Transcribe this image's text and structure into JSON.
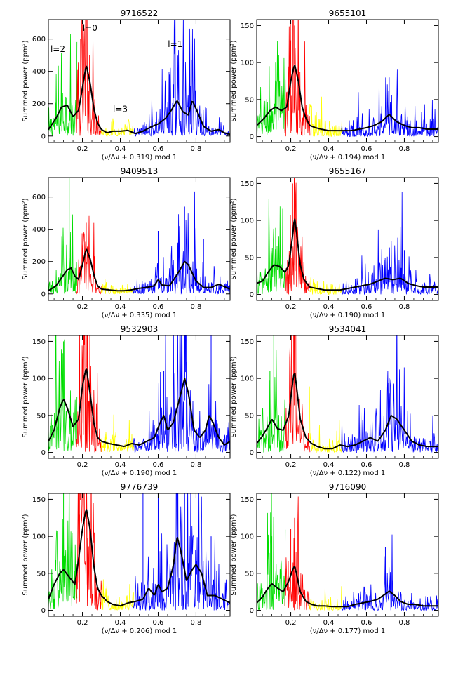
{
  "chart_data": [
    {
      "type": "line",
      "title": "9716522",
      "xlabel": "(ν/Δν + 0.319) mod 1",
      "ylabel": "Summed power (ppm²)",
      "xlim": [
        0.02,
        0.98
      ],
      "ylim": [
        -40,
        720
      ],
      "xticks": [
        "0.2",
        "0.4",
        "0.6",
        "0.8"
      ],
      "yticks": [
        "0",
        "200",
        "400",
        "600"
      ],
      "annotations": [
        {
          "text": "l=2",
          "x": 0.07,
          "y": 520
        },
        {
          "text": "l=0",
          "x": 0.24,
          "y": 650
        },
        {
          "text": "l=3",
          "x": 0.4,
          "y": 150
        },
        {
          "text": "l=1",
          "x": 0.69,
          "y": 550
        }
      ],
      "bands": [
        {
          "mode": "l=2",
          "color": "#00dd00",
          "range": [
            0.02,
            0.17
          ]
        },
        {
          "mode": "l=0",
          "color": "#ff0000",
          "range": [
            0.17,
            0.3
          ]
        },
        {
          "mode": "l=3",
          "color": "#ffff00",
          "range": [
            0.3,
            0.47
          ]
        },
        {
          "mode": "l=1",
          "color": "#0000ff",
          "range": [
            0.47,
            0.98
          ]
        }
      ],
      "envelope": {
        "color": "#000000",
        "x": [
          0.02,
          0.06,
          0.09,
          0.12,
          0.15,
          0.18,
          0.2,
          0.22,
          0.24,
          0.26,
          0.28,
          0.3,
          0.33,
          0.36,
          0.4,
          0.44,
          0.48,
          0.52,
          0.56,
          0.6,
          0.64,
          0.67,
          0.7,
          0.73,
          0.76,
          0.78,
          0.8,
          0.84,
          0.88,
          0.92,
          0.95,
          0.98
        ],
        "y": [
          40,
          110,
          180,
          190,
          120,
          160,
          300,
          440,
          330,
          170,
          80,
          40,
          20,
          30,
          30,
          35,
          15,
          30,
          55,
          75,
          110,
          160,
          220,
          150,
          130,
          220,
          170,
          60,
          30,
          40,
          20,
          10
        ]
      },
      "spikes": [
        {
          "x": 0.22,
          "y": 720
        },
        {
          "x": 0.19,
          "y": 600
        },
        {
          "x": 0.7,
          "y": 510
        },
        {
          "x": 0.78,
          "y": 470
        },
        {
          "x": 0.22,
          "y": 700
        },
        {
          "x": 0.66,
          "y": 380
        }
      ]
    },
    {
      "type": "line",
      "title": "9655101",
      "xlabel": "(ν/Δν + 0.194) mod 1",
      "ylabel": "Summed power (ppm²)",
      "xlim": [
        0.02,
        0.98
      ],
      "ylim": [
        -8,
        158
      ],
      "xticks": [
        "0.2",
        "0.4",
        "0.6",
        "0.8"
      ],
      "yticks": [
        "0",
        "50",
        "100",
        "150"
      ],
      "annotations": [],
      "bands": [
        {
          "mode": "l=2",
          "color": "#00dd00",
          "range": [
            0.02,
            0.17
          ]
        },
        {
          "mode": "l=0",
          "color": "#ff0000",
          "range": [
            0.17,
            0.3
          ]
        },
        {
          "mode": "l=3",
          "color": "#ffff00",
          "range": [
            0.3,
            0.47
          ]
        },
        {
          "mode": "l=1",
          "color": "#0000ff",
          "range": [
            0.47,
            0.98
          ]
        }
      ],
      "envelope": {
        "color": "#000000",
        "x": [
          0.02,
          0.06,
          0.09,
          0.12,
          0.15,
          0.18,
          0.2,
          0.22,
          0.24,
          0.26,
          0.28,
          0.3,
          0.33,
          0.36,
          0.4,
          0.44,
          0.48,
          0.52,
          0.56,
          0.6,
          0.64,
          0.68,
          0.72,
          0.76,
          0.8,
          0.84,
          0.88,
          0.92,
          0.96,
          0.98
        ],
        "y": [
          15,
          25,
          35,
          40,
          35,
          40,
          75,
          98,
          75,
          40,
          25,
          15,
          12,
          10,
          8,
          8,
          8,
          8,
          10,
          12,
          15,
          20,
          30,
          20,
          15,
          12,
          12,
          10,
          10,
          10
        ]
      },
      "spikes": [
        {
          "x": 0.22,
          "y": 150
        },
        {
          "x": 0.2,
          "y": 130
        },
        {
          "x": 0.72,
          "y": 80
        },
        {
          "x": 0.12,
          "y": 100
        }
      ]
    },
    {
      "type": "line",
      "title": "9409513",
      "xlabel": "(ν/Δν + 0.335) mod 1",
      "ylabel": "Summed power (ppm²)",
      "xlim": [
        0.02,
        0.98
      ],
      "ylim": [
        -40,
        720
      ],
      "xticks": [
        "0.2",
        "0.4",
        "0.6",
        "0.8"
      ],
      "yticks": [
        "0",
        "200",
        "400",
        "600"
      ],
      "annotations": [],
      "bands": [
        {
          "mode": "l=2",
          "color": "#00dd00",
          "range": [
            0.02,
            0.17
          ]
        },
        {
          "mode": "l=0",
          "color": "#ff0000",
          "range": [
            0.17,
            0.3
          ]
        },
        {
          "mode": "l=3",
          "color": "#ffff00",
          "range": [
            0.3,
            0.47
          ]
        },
        {
          "mode": "l=1",
          "color": "#0000ff",
          "range": [
            0.47,
            0.98
          ]
        }
      ],
      "envelope": {
        "color": "#000000",
        "x": [
          0.02,
          0.06,
          0.09,
          0.12,
          0.14,
          0.16,
          0.18,
          0.2,
          0.22,
          0.24,
          0.26,
          0.28,
          0.3,
          0.34,
          0.38,
          0.42,
          0.46,
          0.5,
          0.54,
          0.58,
          0.6,
          0.62,
          0.66,
          0.7,
          0.74,
          0.76,
          0.8,
          0.84,
          0.88,
          0.92,
          0.96,
          0.98
        ],
        "y": [
          20,
          50,
          100,
          150,
          160,
          110,
          90,
          180,
          280,
          220,
          120,
          50,
          30,
          25,
          20,
          20,
          25,
          35,
          40,
          50,
          90,
          55,
          50,
          120,
          200,
          180,
          80,
          40,
          40,
          60,
          40,
          30
        ]
      },
      "spikes": [
        {
          "x": 0.13,
          "y": 720
        },
        {
          "x": 0.22,
          "y": 440
        },
        {
          "x": 0.74,
          "y": 540
        },
        {
          "x": 0.6,
          "y": 390
        },
        {
          "x": 0.84,
          "y": 340
        }
      ]
    },
    {
      "type": "line",
      "title": "9655167",
      "xlabel": "(ν/Δν + 0.190) mod 1",
      "ylabel": "Summed power (ppm²)",
      "xlim": [
        0.02,
        0.98
      ],
      "ylim": [
        -8,
        158
      ],
      "xticks": [
        "0.2",
        "0.4",
        "0.6",
        "0.8"
      ],
      "yticks": [
        "0",
        "50",
        "100",
        "150"
      ],
      "annotations": [],
      "bands": [
        {
          "mode": "l=2",
          "color": "#00dd00",
          "range": [
            0.02,
            0.17
          ]
        },
        {
          "mode": "l=0",
          "color": "#ff0000",
          "range": [
            0.17,
            0.3
          ]
        },
        {
          "mode": "l=3",
          "color": "#ffff00",
          "range": [
            0.3,
            0.47
          ]
        },
        {
          "mode": "l=1",
          "color": "#0000ff",
          "range": [
            0.47,
            0.98
          ]
        }
      ],
      "envelope": {
        "color": "#000000",
        "x": [
          0.02,
          0.05,
          0.08,
          0.11,
          0.14,
          0.17,
          0.19,
          0.21,
          0.22,
          0.23,
          0.25,
          0.27,
          0.3,
          0.34,
          0.38,
          0.42,
          0.46,
          0.5,
          0.54,
          0.58,
          0.62,
          0.66,
          0.7,
          0.74,
          0.78,
          0.82,
          0.86,
          0.9,
          0.94,
          0.98
        ],
        "y": [
          15,
          18,
          30,
          40,
          38,
          30,
          40,
          80,
          105,
          85,
          40,
          20,
          10,
          8,
          6,
          6,
          6,
          8,
          10,
          12,
          14,
          18,
          22,
          20,
          22,
          15,
          12,
          10,
          10,
          10
        ]
      },
      "spikes": [
        {
          "x": 0.22,
          "y": 160
        },
        {
          "x": 0.21,
          "y": 150
        },
        {
          "x": 0.12,
          "y": 90
        },
        {
          "x": 0.8,
          "y": 60
        }
      ]
    },
    {
      "type": "line",
      "title": "9532903",
      "xlabel": "(ν/Δν + 0.190) mod 1",
      "ylabel": "Summed power (ppm²)",
      "xlim": [
        0.02,
        0.98
      ],
      "ylim": [
        -8,
        158
      ],
      "xticks": [
        "0.2",
        "0.4",
        "0.6",
        "0.8"
      ],
      "yticks": [
        "0",
        "50",
        "100",
        "150"
      ],
      "annotations": [],
      "bands": [
        {
          "mode": "l=2",
          "color": "#00dd00",
          "range": [
            0.02,
            0.17
          ]
        },
        {
          "mode": "l=0",
          "color": "#ff0000",
          "range": [
            0.17,
            0.3
          ]
        },
        {
          "mode": "l=3",
          "color": "#ffff00",
          "range": [
            0.3,
            0.47
          ]
        },
        {
          "mode": "l=1",
          "color": "#0000ff",
          "range": [
            0.47,
            0.98
          ]
        }
      ],
      "envelope": {
        "color": "#000000",
        "x": [
          0.02,
          0.05,
          0.08,
          0.1,
          0.12,
          0.15,
          0.18,
          0.2,
          0.22,
          0.24,
          0.26,
          0.28,
          0.3,
          0.34,
          0.38,
          0.42,
          0.46,
          0.5,
          0.54,
          0.58,
          0.61,
          0.63,
          0.65,
          0.68,
          0.71,
          0.74,
          0.76,
          0.79,
          0.82,
          0.85,
          0.87,
          0.89,
          0.92,
          0.95,
          0.98
        ],
        "y": [
          15,
          30,
          60,
          72,
          60,
          35,
          45,
          90,
          115,
          80,
          40,
          20,
          15,
          12,
          10,
          8,
          12,
          10,
          15,
          20,
          40,
          50,
          30,
          40,
          70,
          100,
          80,
          30,
          20,
          30,
          50,
          40,
          20,
          10,
          15
        ]
      },
      "spikes": [
        {
          "x": 0.1,
          "y": 150
        },
        {
          "x": 0.22,
          "y": 160
        },
        {
          "x": 0.74,
          "y": 160
        },
        {
          "x": 0.88,
          "y": 160
        },
        {
          "x": 0.63,
          "y": 110
        }
      ]
    },
    {
      "type": "line",
      "title": "9534041",
      "xlabel": "(ν/Δν + 0.122) mod 1",
      "ylabel": "Summed power (ppm²)",
      "xlim": [
        0.02,
        0.98
      ],
      "ylim": [
        -8,
        158
      ],
      "xticks": [
        "0.2",
        "0.4",
        "0.6",
        "0.8"
      ],
      "yticks": [
        "0",
        "50",
        "100",
        "150"
      ],
      "annotations": [],
      "bands": [
        {
          "mode": "l=2",
          "color": "#00dd00",
          "range": [
            0.02,
            0.17
          ]
        },
        {
          "mode": "l=0",
          "color": "#ff0000",
          "range": [
            0.17,
            0.3
          ]
        },
        {
          "mode": "l=3",
          "color": "#ffff00",
          "range": [
            0.3,
            0.47
          ]
        },
        {
          "mode": "l=1",
          "color": "#0000ff",
          "range": [
            0.47,
            0.98
          ]
        }
      ],
      "envelope": {
        "color": "#000000",
        "x": [
          0.02,
          0.05,
          0.08,
          0.1,
          0.13,
          0.16,
          0.19,
          0.21,
          0.22,
          0.23,
          0.25,
          0.28,
          0.31,
          0.34,
          0.38,
          0.42,
          0.46,
          0.5,
          0.54,
          0.58,
          0.62,
          0.66,
          0.7,
          0.73,
          0.76,
          0.8,
          0.84,
          0.88,
          0.92,
          0.96,
          0.98
        ],
        "y": [
          12,
          22,
          35,
          45,
          32,
          30,
          50,
          95,
          110,
          90,
          45,
          20,
          12,
          8,
          5,
          5,
          10,
          8,
          10,
          15,
          20,
          15,
          30,
          50,
          45,
          30,
          15,
          10,
          8,
          8,
          8
        ]
      },
      "spikes": [
        {
          "x": 0.22,
          "y": 160
        },
        {
          "x": 0.11,
          "y": 160
        },
        {
          "x": 0.72,
          "y": 100
        },
        {
          "x": 0.09,
          "y": 110
        }
      ]
    },
    {
      "type": "line",
      "title": "9776739",
      "xlabel": "(ν/Δν + 0.206) mod 1",
      "ylabel": "Summed power (ppm²)",
      "xlim": [
        0.02,
        0.98
      ],
      "ylim": [
        -8,
        158
      ],
      "xticks": [
        "0.2",
        "0.4",
        "0.6",
        "0.8"
      ],
      "yticks": [
        "0",
        "50",
        "100",
        "150"
      ],
      "annotations": [],
      "bands": [
        {
          "mode": "l=2",
          "color": "#00dd00",
          "range": [
            0.02,
            0.17
          ]
        },
        {
          "mode": "l=0",
          "color": "#ff0000",
          "range": [
            0.17,
            0.3
          ]
        },
        {
          "mode": "l=3",
          "color": "#ffff00",
          "range": [
            0.3,
            0.47
          ]
        },
        {
          "mode": "l=1",
          "color": "#0000ff",
          "range": [
            0.47,
            0.98
          ]
        }
      ],
      "envelope": {
        "color": "#000000",
        "x": [
          0.02,
          0.05,
          0.08,
          0.1,
          0.13,
          0.16,
          0.18,
          0.2,
          0.22,
          0.24,
          0.26,
          0.28,
          0.3,
          0.33,
          0.36,
          0.4,
          0.44,
          0.48,
          0.52,
          0.55,
          0.58,
          0.6,
          0.62,
          0.65,
          0.68,
          0.7,
          0.72,
          0.75,
          0.78,
          0.8,
          0.83,
          0.86,
          0.9,
          0.94,
          0.98
        ],
        "y": [
          15,
          35,
          50,
          55,
          45,
          35,
          70,
          110,
          138,
          110,
          60,
          30,
          20,
          12,
          8,
          6,
          10,
          12,
          15,
          30,
          20,
          35,
          25,
          30,
          60,
          100,
          80,
          40,
          55,
          62,
          50,
          20,
          20,
          15,
          10
        ]
      },
      "spikes": [
        {
          "x": 0.22,
          "y": 160
        },
        {
          "x": 0.52,
          "y": 160
        },
        {
          "x": 0.7,
          "y": 160
        },
        {
          "x": 0.6,
          "y": 160
        },
        {
          "x": 0.74,
          "y": 160
        },
        {
          "x": 0.1,
          "y": 160
        },
        {
          "x": 0.88,
          "y": 100
        }
      ]
    },
    {
      "type": "line",
      "title": "9716090",
      "xlabel": "(ν/Δν + 0.177) mod 1",
      "ylabel": "Summed power (ppm²)",
      "xlim": [
        0.02,
        0.98
      ],
      "ylim": [
        -8,
        158
      ],
      "xticks": [
        "0.2",
        "0.4",
        "0.6",
        "0.8"
      ],
      "yticks": [
        "0",
        "50",
        "100",
        "150"
      ],
      "annotations": [],
      "bands": [
        {
          "mode": "l=2",
          "color": "#00dd00",
          "range": [
            0.02,
            0.17
          ]
        },
        {
          "mode": "l=0",
          "color": "#ff0000",
          "range": [
            0.17,
            0.3
          ]
        },
        {
          "mode": "l=3",
          "color": "#ffff00",
          "range": [
            0.3,
            0.47
          ]
        },
        {
          "mode": "l=1",
          "color": "#0000ff",
          "range": [
            0.47,
            0.98
          ]
        }
      ],
      "envelope": {
        "color": "#000000",
        "x": [
          0.02,
          0.05,
          0.08,
          0.1,
          0.13,
          0.16,
          0.19,
          0.21,
          0.22,
          0.23,
          0.25,
          0.28,
          0.31,
          0.34,
          0.38,
          0.42,
          0.46,
          0.5,
          0.54,
          0.58,
          0.62,
          0.66,
          0.7,
          0.72,
          0.75,
          0.78,
          0.82,
          0.86,
          0.9,
          0.94,
          0.98
        ],
        "y": [
          10,
          18,
          30,
          36,
          30,
          25,
          40,
          55,
          60,
          50,
          25,
          12,
          8,
          6,
          6,
          5,
          5,
          5,
          8,
          10,
          12,
          15,
          22,
          26,
          20,
          12,
          8,
          8,
          6,
          6,
          6
        ]
      },
      "spikes": [
        {
          "x": 0.22,
          "y": 125
        },
        {
          "x": 0.1,
          "y": 100
        },
        {
          "x": 0.7,
          "y": 85
        },
        {
          "x": 0.2,
          "y": 110
        }
      ]
    }
  ]
}
